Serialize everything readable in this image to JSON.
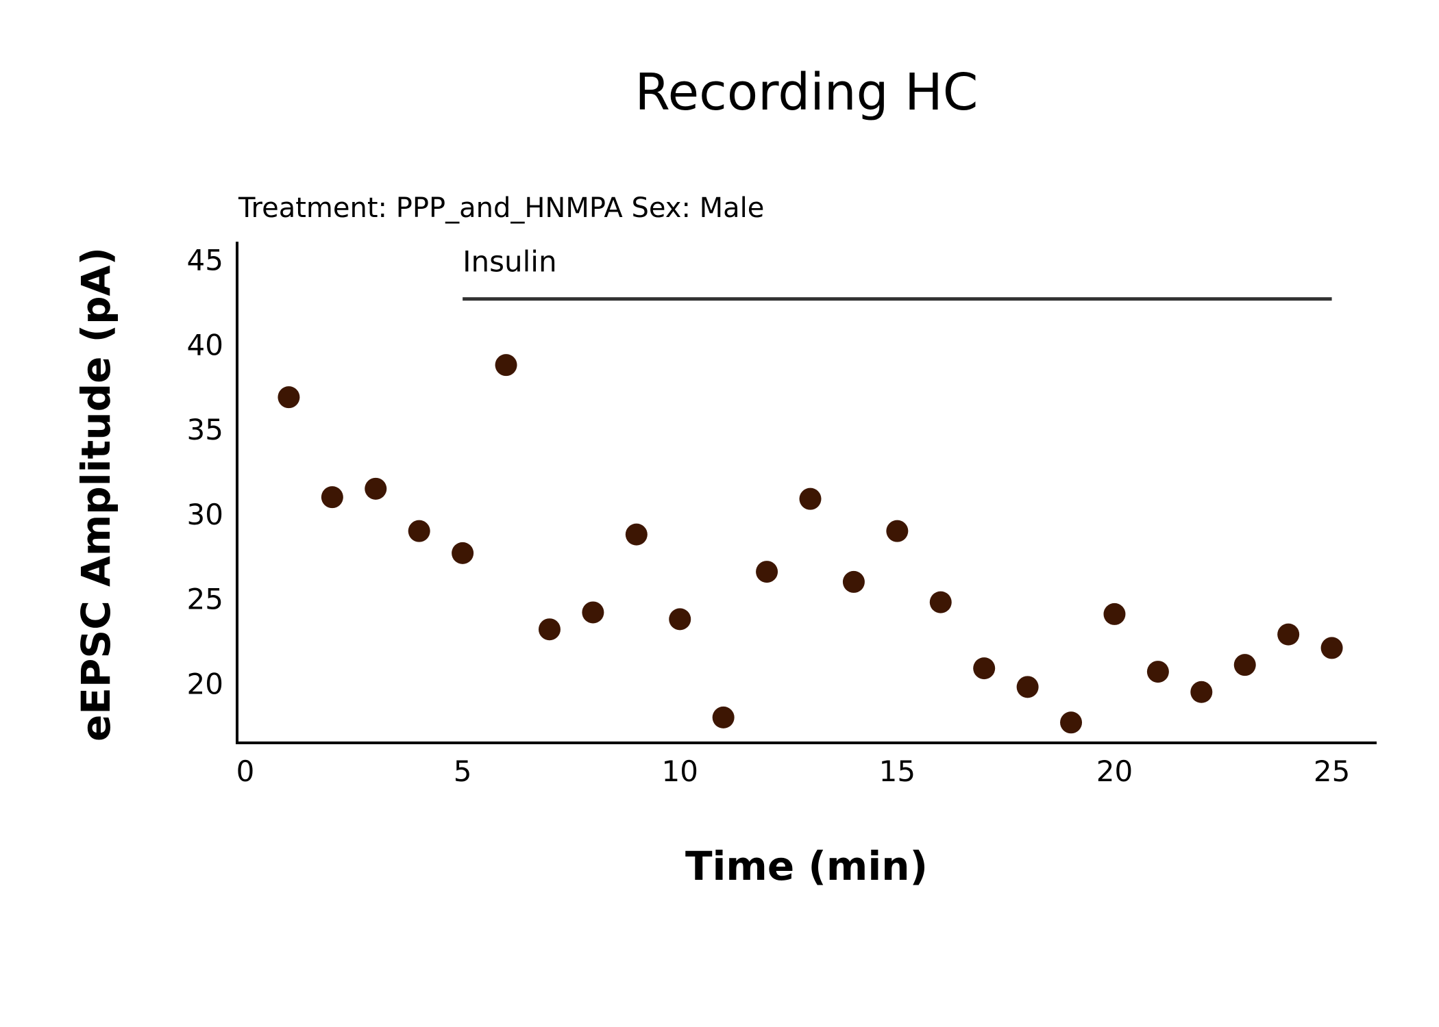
{
  "chart_data": {
    "type": "scatter",
    "title": "Recording HC",
    "subtitle": "Treatment: PPP_and_HNMPA  Sex: Male",
    "xlabel": "Time (min)",
    "ylabel": "eEPSC Amplitude (pA)",
    "xlim": [
      0,
      26
    ],
    "ylim": [
      16.5,
      46
    ],
    "xticks": [
      0,
      5,
      10,
      15,
      20,
      25
    ],
    "yticks": [
      20,
      25,
      30,
      35,
      40,
      45
    ],
    "grid": false,
    "marker_color": "#3d1603",
    "annotation": {
      "label": "Insulin",
      "x_start": 5,
      "x_end": 25,
      "y": 42.7
    },
    "points": {
      "x": [
        1,
        2,
        3,
        4,
        5,
        6,
        7,
        8,
        9,
        10,
        11,
        12,
        13,
        14,
        15,
        16,
        17,
        18,
        19,
        20,
        21,
        22,
        23,
        24,
        25
      ],
      "y": [
        36.9,
        31.0,
        31.5,
        29.0,
        27.7,
        38.8,
        23.2,
        24.2,
        28.8,
        23.8,
        18.0,
        26.6,
        30.9,
        26.0,
        29.0,
        24.8,
        20.9,
        19.8,
        17.7,
        24.1,
        20.7,
        19.5,
        21.1,
        22.9,
        22.1
      ]
    }
  }
}
